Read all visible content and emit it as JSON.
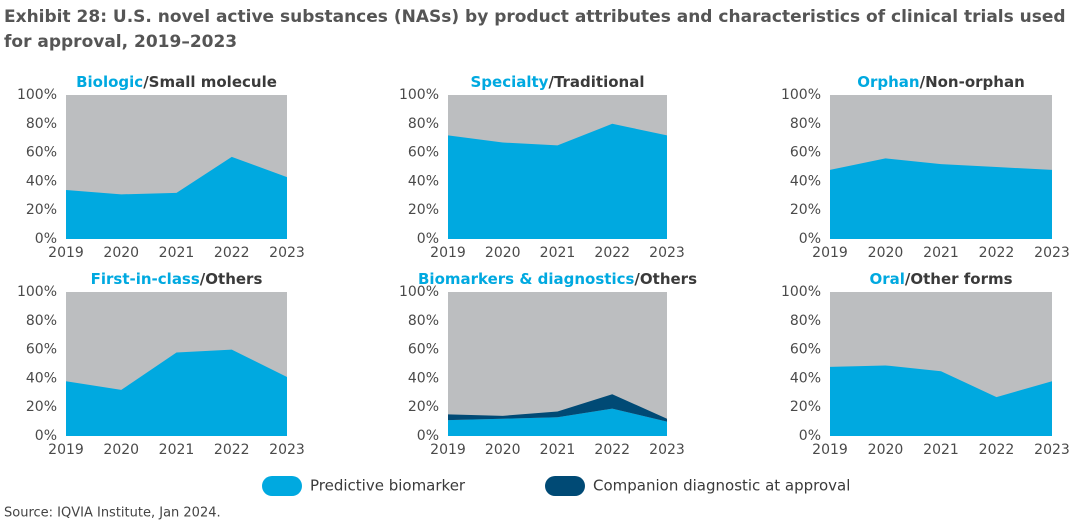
{
  "title_line1": "Exhibit 28: U.S. novel active substances (NASs) by product attributes and characteristics of clinical trials used",
  "title_line2": "for approval, 2019–2023",
  "source": "Source: IQVIA Institute, Jan 2024.",
  "chart_data": [
    {
      "type": "area",
      "title_highlight": "Biologic",
      "title_rest": "/Small molecule",
      "categories": [
        "2019",
        "2020",
        "2021",
        "2022",
        "2023"
      ],
      "values": [
        34,
        31,
        32,
        57,
        43
      ],
      "color": "#00a9e0",
      "ylim": [
        0,
        100
      ],
      "yticks": [
        {
          "value": 0,
          "label": "0%"
        },
        {
          "value": 20,
          "label": "20%"
        },
        {
          "value": 40,
          "label": "40%"
        },
        {
          "value": 60,
          "label": "60%"
        },
        {
          "value": 80,
          "label": "80%"
        },
        {
          "value": 100,
          "label": "100%"
        }
      ]
    },
    {
      "type": "area",
      "title_highlight": "Specialty",
      "title_rest": "/Traditional",
      "categories": [
        "2019",
        "2020",
        "2021",
        "2022",
        "2023"
      ],
      "values": [
        72,
        67,
        65,
        80,
        72
      ],
      "color": "#00a9e0",
      "ylim": [
        0,
        100
      ],
      "yticks": [
        {
          "value": 0,
          "label": "0%"
        },
        {
          "value": 20,
          "label": "20%"
        },
        {
          "value": 40,
          "label": "40%"
        },
        {
          "value": 60,
          "label": "60%"
        },
        {
          "value": 80,
          "label": "80%"
        },
        {
          "value": 100,
          "label": "100%"
        }
      ]
    },
    {
      "type": "area",
      "title_highlight": "Orphan",
      "title_rest": "/Non-orphan",
      "categories": [
        "2019",
        "2020",
        "2021",
        "2022",
        "2023"
      ],
      "values": [
        48,
        56,
        52,
        50,
        48
      ],
      "color": "#00a9e0",
      "ylim": [
        0,
        100
      ],
      "yticks": [
        {
          "value": 0,
          "label": "0%"
        },
        {
          "value": 20,
          "label": "20%"
        },
        {
          "value": 40,
          "label": "40%"
        },
        {
          "value": 60,
          "label": "60%"
        },
        {
          "value": 80,
          "label": "80%"
        },
        {
          "value": 100,
          "label": "100%"
        }
      ]
    },
    {
      "type": "area",
      "title_highlight": "First-in-class",
      "title_rest": "/Others",
      "categories": [
        "2019",
        "2020",
        "2021",
        "2022",
        "2023"
      ],
      "values": [
        38,
        32,
        58,
        60,
        41
      ],
      "color": "#00a9e0",
      "ylim": [
        0,
        100
      ],
      "yticks": [
        {
          "value": 0,
          "label": "0%"
        },
        {
          "value": 20,
          "label": "20%"
        },
        {
          "value": 40,
          "label": "40%"
        },
        {
          "value": 60,
          "label": "60%"
        },
        {
          "value": 80,
          "label": "80%"
        },
        {
          "value": 100,
          "label": "100%"
        }
      ]
    },
    {
      "type": "area",
      "title_highlight": "Biomarkers & diagnostics",
      "title_rest": "/Others",
      "categories": [
        "2019",
        "2020",
        "2021",
        "2022",
        "2023"
      ],
      "series": [
        {
          "name": "Predictive biomarker",
          "color": "#00a9e0",
          "values": [
            11,
            12,
            13,
            19,
            10
          ]
        },
        {
          "name": "Companion diagnostic at approval",
          "color": "#004a75",
          "values": [
            4,
            2,
            4,
            10,
            2
          ]
        }
      ],
      "ylim": [
        0,
        100
      ],
      "yticks": [
        {
          "value": 0,
          "label": "0%"
        },
        {
          "value": 20,
          "label": "20%"
        },
        {
          "value": 40,
          "label": "40%"
        },
        {
          "value": 60,
          "label": "60%"
        },
        {
          "value": 80,
          "label": "80%"
        },
        {
          "value": 100,
          "label": "100%"
        }
      ]
    },
    {
      "type": "area",
      "title_highlight": "Oral",
      "title_rest": "/Other forms",
      "categories": [
        "2019",
        "2020",
        "2021",
        "2022",
        "2023"
      ],
      "values": [
        48,
        49,
        45,
        27,
        38
      ],
      "color": "#00a9e0",
      "ylim": [
        0,
        100
      ],
      "yticks": [
        {
          "value": 0,
          "label": "0%"
        },
        {
          "value": 20,
          "label": "20%"
        },
        {
          "value": 40,
          "label": "40%"
        },
        {
          "value": 60,
          "label": "60%"
        },
        {
          "value": 80,
          "label": "80%"
        },
        {
          "value": 100,
          "label": "100%"
        }
      ]
    }
  ]
}
